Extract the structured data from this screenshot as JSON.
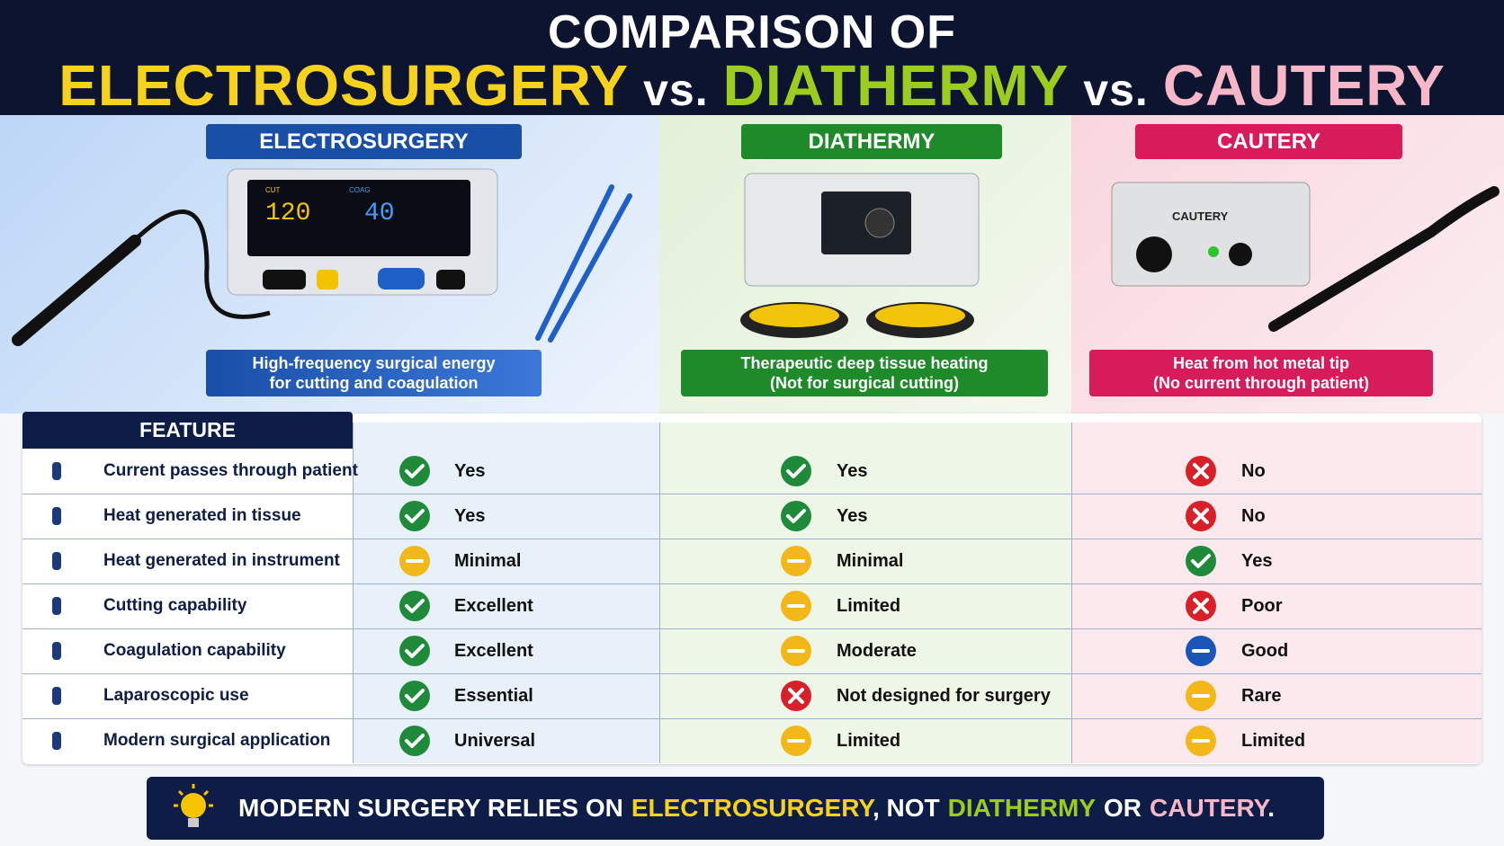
{
  "header": {
    "title_line1": "COMPARISON OF",
    "title_line2": [
      "ELECTROSURGERY",
      "vs.",
      "DIATHERMY",
      "vs.",
      "CAUTERY"
    ]
  },
  "panels": [
    {
      "name": "ELECTROSURGERY",
      "description": [
        "High-frequency surgical energy",
        "for cutting and coagulation"
      ],
      "device_labels": [
        "CUT",
        "120",
        "COAG",
        "40"
      ]
    },
    {
      "name": "DIATHERMY",
      "description": [
        "Therapeutic deep tissue heating",
        "(Not for surgical cutting)"
      ],
      "device_labels": []
    },
    {
      "name": "CAUTERY",
      "description": [
        "Heat from hot metal tip",
        "(No current through patient)"
      ],
      "device_labels": [
        "CAUTERY"
      ]
    }
  ],
  "table": {
    "header": "FEATURE",
    "rows": [
      {
        "feature": "Current passes through patient",
        "cells": [
          {
            "status": "check",
            "text": "Yes"
          },
          {
            "status": "check",
            "text": "Yes"
          },
          {
            "status": "cross",
            "text": "No"
          }
        ]
      },
      {
        "feature": "Heat generated in tissue",
        "cells": [
          {
            "status": "check",
            "text": "Yes"
          },
          {
            "status": "check",
            "text": "Yes"
          },
          {
            "status": "cross",
            "text": "No"
          }
        ]
      },
      {
        "feature": "Heat generated in instrument",
        "cells": [
          {
            "status": "dash",
            "text": "Minimal"
          },
          {
            "status": "dash",
            "text": "Minimal"
          },
          {
            "status": "check",
            "text": "Yes"
          }
        ]
      },
      {
        "feature": "Cutting capability",
        "cells": [
          {
            "status": "check",
            "text": "Excellent"
          },
          {
            "status": "dash",
            "text": "Limited"
          },
          {
            "status": "cross",
            "text": "Poor"
          }
        ]
      },
      {
        "feature": "Coagulation capability",
        "cells": [
          {
            "status": "check",
            "text": "Excellent"
          },
          {
            "status": "dash",
            "text": "Moderate"
          },
          {
            "status": "minus",
            "text": "Good"
          }
        ]
      },
      {
        "feature": "Laparoscopic use",
        "cells": [
          {
            "status": "check",
            "text": "Essential"
          },
          {
            "status": "cross",
            "text": "Not designed for surgery"
          },
          {
            "status": "dash",
            "text": "Rare"
          }
        ]
      },
      {
        "feature": "Modern surgical application",
        "cells": [
          {
            "status": "check",
            "text": "Universal"
          },
          {
            "status": "dash",
            "text": "Limited"
          },
          {
            "status": "dash",
            "text": "Limited"
          }
        ]
      }
    ]
  },
  "footer": [
    "MODERN SURGERY RELIES ON",
    "ELECTROSURGERY",
    ", NOT",
    "DIATHERMY",
    "OR",
    "CAUTERY",
    "."
  ]
}
